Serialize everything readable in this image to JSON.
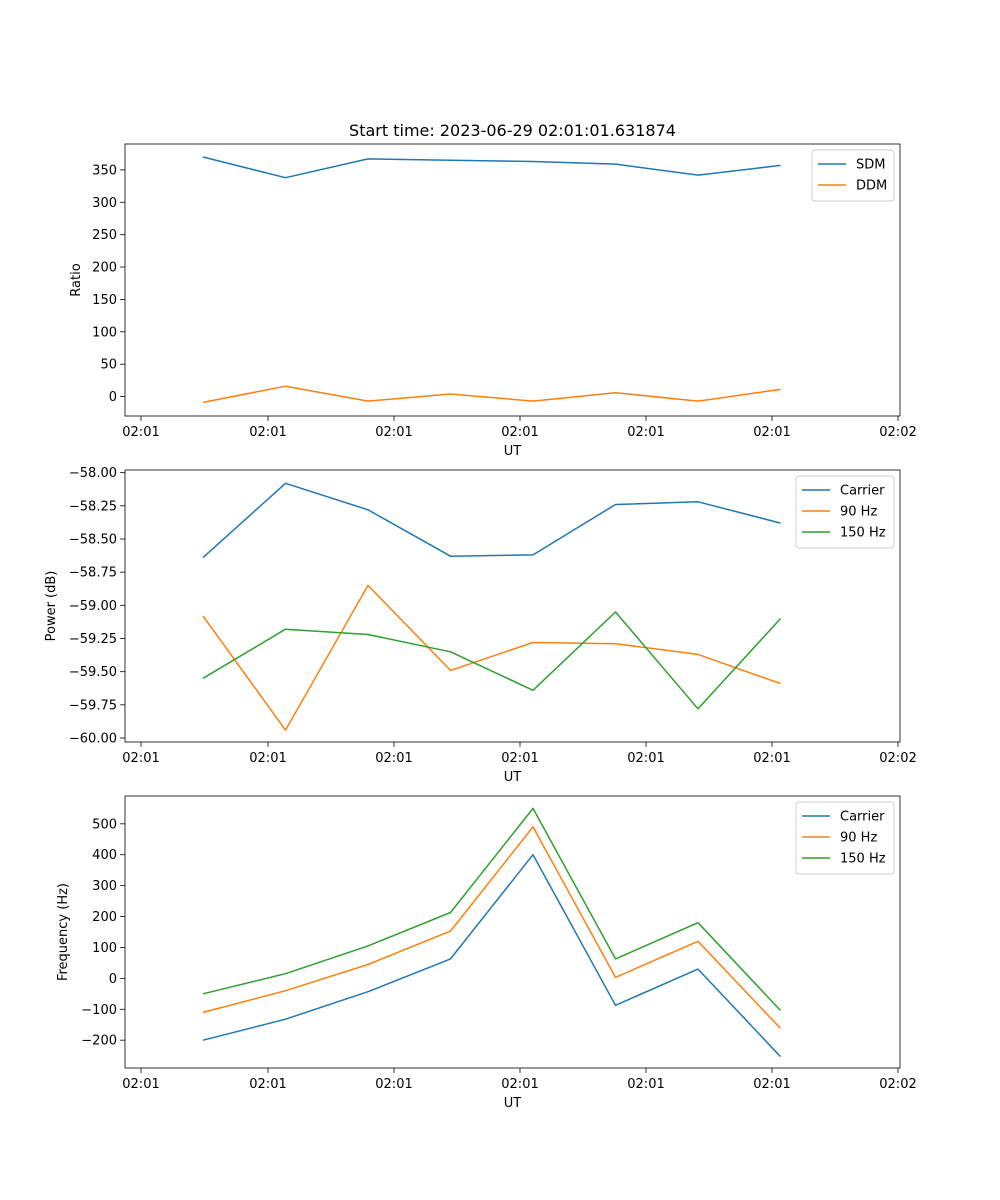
{
  "page": {
    "title": "Start time: 2023-06-29 02:01:01.631874"
  },
  "chart_data": [
    {
      "type": "line",
      "title": "Start time: 2023-06-29 02:01:01.631874",
      "xlabel": "UT",
      "ylabel": "Ratio",
      "x_ticks": [
        "02:01",
        "02:01",
        "02:01",
        "02:01",
        "02:01",
        "02:01",
        "02:02"
      ],
      "y_ticks": [
        "0",
        "50",
        "100",
        "150",
        "200",
        "250",
        "300",
        "350"
      ],
      "ylim": [
        -30,
        390
      ],
      "grid": false,
      "legend_position": "top-right",
      "series": [
        {
          "name": "SDM",
          "color": "#1f77b4",
          "values": [
            370,
            338,
            367,
            365,
            363,
            359,
            342,
            357
          ]
        },
        {
          "name": "DDM",
          "color": "#ff7f0e",
          "values": [
            -9,
            16,
            -7,
            4,
            -7,
            6,
            -7,
            11
          ]
        }
      ]
    },
    {
      "type": "line",
      "title": "",
      "xlabel": "UT",
      "ylabel": "Power (dB)",
      "x_ticks": [
        "02:01",
        "02:01",
        "02:01",
        "02:01",
        "02:01",
        "02:01",
        "02:02"
      ],
      "y_ticks": [
        "−60.00",
        "−59.75",
        "−59.50",
        "−59.25",
        "−59.00",
        "−58.75",
        "−58.50",
        "−58.25",
        "−58.00"
      ],
      "ylim": [
        -60.03,
        -57.98
      ],
      "grid": false,
      "legend_position": "top-right",
      "series": [
        {
          "name": "Carrier",
          "color": "#1f77b4",
          "values": [
            -58.64,
            -58.08,
            -58.28,
            -58.63,
            -58.62,
            -58.24,
            -58.22,
            -58.38
          ]
        },
        {
          "name": "90 Hz",
          "color": "#ff7f0e",
          "values": [
            -59.08,
            -59.94,
            -58.85,
            -59.49,
            -59.28,
            -59.29,
            -59.37,
            -59.59
          ]
        },
        {
          "name": "150 Hz",
          "color": "#2ca02c",
          "values": [
            -59.55,
            -59.18,
            -59.22,
            -59.35,
            -59.64,
            -59.05,
            -59.78,
            -59.1
          ]
        }
      ]
    },
    {
      "type": "line",
      "title": "",
      "xlabel": "UT",
      "ylabel": "Frequency (Hz)",
      "x_ticks": [
        "02:01",
        "02:01",
        "02:01",
        "02:01",
        "02:01",
        "02:01",
        "02:02"
      ],
      "y_ticks": [
        "−200",
        "−100",
        "0",
        "100",
        "200",
        "300",
        "400",
        "500"
      ],
      "ylim": [
        -290,
        590
      ],
      "grid": false,
      "legend_position": "top-right",
      "series": [
        {
          "name": "Carrier",
          "color": "#1f77b4",
          "values": [
            -200,
            -132,
            -43,
            63,
            400,
            -87,
            30,
            -253
          ]
        },
        {
          "name": "90 Hz",
          "color": "#ff7f0e",
          "values": [
            -110,
            -40,
            45,
            153,
            490,
            3,
            120,
            -162
          ]
        },
        {
          "name": "150 Hz",
          "color": "#2ca02c",
          "values": [
            -50,
            15,
            105,
            213,
            550,
            63,
            180,
            -104
          ]
        }
      ]
    }
  ]
}
